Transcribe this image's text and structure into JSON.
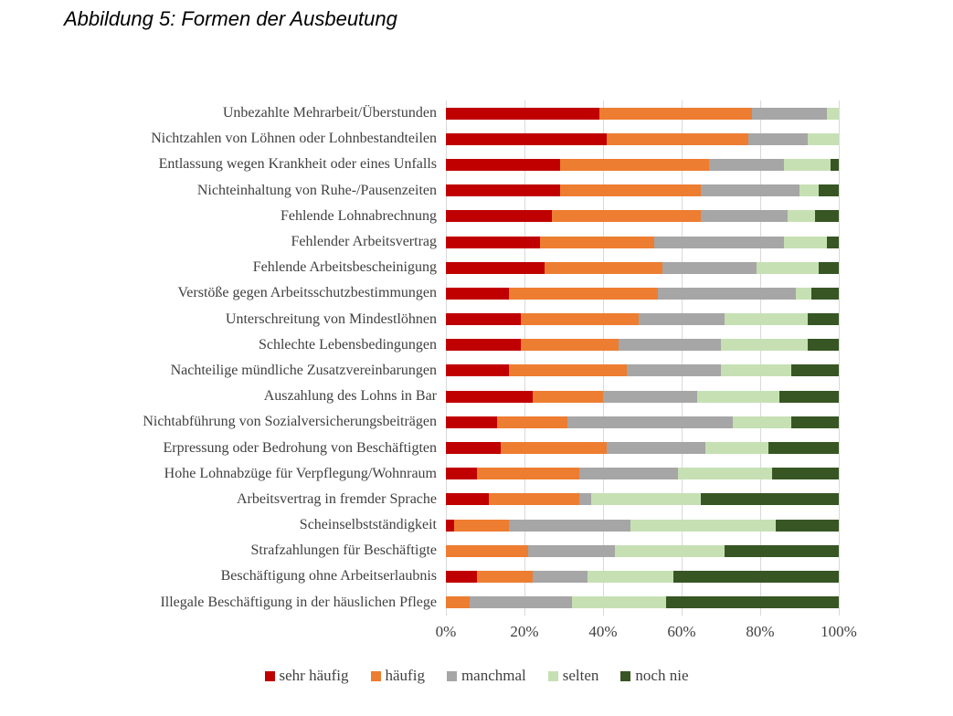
{
  "page": {
    "title": "Abbildung 5: Formen der Ausbeutung"
  },
  "chart_data": {
    "type": "bar",
    "orientation": "horizontal",
    "stacked": true,
    "values_unit": "percent",
    "title": "Abbildung 5: Formen der Ausbeutung",
    "categories": [
      "Unbezahlte Mehrarbeit/Überstunden",
      "Nichtzahlen von Löhnen oder Lohnbestandteilen",
      "Entlassung wegen Krankheit oder eines Unfalls",
      "Nichteinhaltung von Ruhe-/Pausenzeiten",
      "Fehlende Lohnabrechnung",
      "Fehlender Arbeitsvertrag",
      "Fehlende Arbeitsbescheinigung",
      "Verstöße gegen Arbeitsschutzbestimmungen",
      "Unterschreitung von Mindestlöhnen",
      "Schlechte Lebensbedingungen",
      "Nachteilige mündliche Zusatzvereinbarungen",
      "Auszahlung des Lohns in Bar",
      "Nichtabführung von Sozialversicherungsbeiträgen",
      "Erpressung oder Bedrohung von Beschäftigten",
      "Hohe Lohnabzüge für Verpflegung/Wohnraum",
      "Arbeitsvertrag in fremder Sprache",
      "Scheinselbstständigkeit",
      "Strafzahlungen für Beschäftigte",
      "Beschäftigung ohne Arbeitserlaubnis",
      "Illegale Beschäftigung in der häuslichen Pflege"
    ],
    "series": [
      {
        "name": "sehr häufig",
        "color": "#C00000",
        "values": [
          39,
          41,
          29,
          29,
          27,
          24,
          25,
          16,
          19,
          19,
          16,
          22,
          13,
          14,
          8,
          11,
          2,
          0,
          8,
          0
        ]
      },
      {
        "name": "häufig",
        "color": "#ED7D31",
        "values": [
          39,
          36,
          38,
          36,
          38,
          29,
          30,
          38,
          30,
          25,
          30,
          18,
          18,
          27,
          26,
          23,
          14,
          21,
          14,
          6
        ]
      },
      {
        "name": "manchmal",
        "color": "#A6A6A6",
        "values": [
          19,
          15,
          19,
          25,
          22,
          33,
          24,
          35,
          22,
          26,
          24,
          24,
          42,
          25,
          25,
          3,
          31,
          22,
          14,
          26
        ]
      },
      {
        "name": "selten",
        "color": "#C6E0B4",
        "values": [
          3,
          8,
          12,
          5,
          7,
          11,
          16,
          4,
          21,
          22,
          18,
          21,
          15,
          16,
          24,
          28,
          37,
          28,
          22,
          24
        ]
      },
      {
        "name": "noch nie",
        "color": "#375623",
        "values": [
          0,
          0,
          2,
          5,
          6,
          3,
          5,
          7,
          8,
          8,
          12,
          15,
          12,
          18,
          17,
          35,
          16,
          29,
          42,
          44
        ]
      }
    ],
    "x_axis": {
      "min": 0,
      "max": 100,
      "tick_labels": [
        "0%",
        "20%",
        "40%",
        "60%",
        "80%",
        "100%"
      ]
    },
    "legend": {
      "position": "bottom",
      "entries": [
        "sehr häufig",
        "häufig",
        "manchmal",
        "selten",
        "noch nie"
      ]
    },
    "grid": true,
    "gridline_color": "#D9D9D9",
    "text_color": "#404040"
  }
}
